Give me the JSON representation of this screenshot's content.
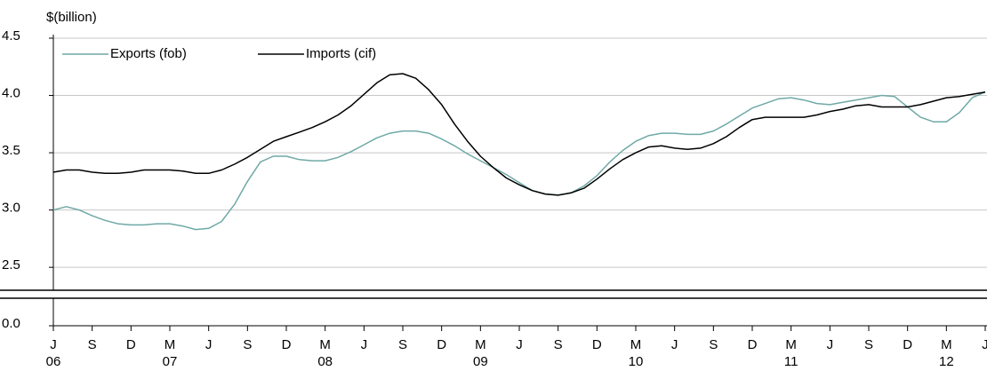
{
  "chart_data": {
    "type": "line",
    "y_axis_label": "$(billion)",
    "categories": [
      "J",
      null,
      null,
      "S",
      null,
      null,
      "D",
      null,
      null,
      "M",
      null,
      null,
      "J",
      null,
      null,
      "S",
      null,
      null,
      "D",
      null,
      null,
      "M",
      null,
      null,
      "J",
      null,
      null,
      "S",
      null,
      null,
      "D",
      null,
      null,
      "M",
      null,
      null,
      "J",
      null,
      null,
      "S",
      null,
      null,
      "D",
      null,
      null,
      "M",
      null,
      null,
      "J",
      null,
      null,
      "S",
      null,
      null,
      "D",
      null,
      null,
      "M",
      null,
      null,
      "J",
      null,
      null,
      "S",
      null,
      null,
      "D",
      null,
      null,
      "M",
      null,
      null,
      "J"
    ],
    "category_years": [
      "06",
      null,
      null,
      null,
      null,
      null,
      null,
      null,
      null,
      "07",
      null,
      null,
      null,
      null,
      null,
      null,
      null,
      null,
      null,
      null,
      null,
      "08",
      null,
      null,
      null,
      null,
      null,
      null,
      null,
      null,
      null,
      null,
      null,
      "09",
      null,
      null,
      null,
      null,
      null,
      null,
      null,
      null,
      null,
      null,
      null,
      "10",
      null,
      null,
      null,
      null,
      null,
      null,
      null,
      null,
      null,
      null,
      null,
      "11",
      null,
      null,
      null,
      null,
      null,
      null,
      null,
      null,
      null,
      null,
      null,
      "12",
      null,
      null,
      null
    ],
    "series": [
      {
        "name": "Exports (fob)",
        "color": "#6fa9a6",
        "values": [
          3.0,
          3.03,
          3.0,
          2.95,
          2.91,
          2.88,
          2.87,
          2.87,
          2.88,
          2.88,
          2.86,
          2.83,
          2.84,
          2.9,
          3.05,
          3.25,
          3.42,
          3.47,
          3.47,
          3.44,
          3.43,
          3.43,
          3.46,
          3.51,
          3.57,
          3.63,
          3.67,
          3.69,
          3.69,
          3.67,
          3.62,
          3.56,
          3.49,
          3.43,
          3.37,
          3.31,
          3.24,
          3.17,
          3.14,
          3.13,
          3.15,
          3.21,
          3.3,
          3.42,
          3.52,
          3.6,
          3.65,
          3.67,
          3.67,
          3.66,
          3.66,
          3.69,
          3.75,
          3.82,
          3.89,
          3.93,
          3.97,
          3.98,
          3.96,
          3.93,
          3.92,
          3.94,
          3.96,
          3.98,
          4.0,
          3.99,
          3.9,
          3.81,
          3.77,
          3.77,
          3.85,
          3.98,
          4.03
        ]
      },
      {
        "name": "Imports (cif)",
        "color": "#000000",
        "values": [
          3.33,
          3.35,
          3.35,
          3.33,
          3.32,
          3.32,
          3.33,
          3.35,
          3.35,
          3.35,
          3.34,
          3.32,
          3.32,
          3.35,
          3.4,
          3.46,
          3.53,
          3.6,
          3.64,
          3.68,
          3.72,
          3.77,
          3.83,
          3.91,
          4.01,
          4.11,
          4.18,
          4.19,
          4.15,
          4.05,
          3.92,
          3.75,
          3.6,
          3.47,
          3.37,
          3.28,
          3.22,
          3.17,
          3.14,
          3.13,
          3.15,
          3.19,
          3.27,
          3.36,
          3.44,
          3.5,
          3.55,
          3.56,
          3.54,
          3.53,
          3.54,
          3.58,
          3.64,
          3.72,
          3.79,
          3.81,
          3.81,
          3.81,
          3.81,
          3.83,
          3.86,
          3.88,
          3.91,
          3.92,
          3.9,
          3.9,
          3.9,
          3.92,
          3.95,
          3.98,
          3.99,
          4.01,
          4.03
        ]
      }
    ],
    "ylim": [
      2.3,
      4.5
    ],
    "yticks": [
      {
        "value": 0,
        "label": "0.0"
      },
      2.5,
      {
        "value": 3,
        "label": "3.0"
      },
      3.5,
      {
        "value": 4,
        "label": "4.0"
      },
      4.5
    ],
    "axis_break": true,
    "grid": true,
    "legend": "top-left"
  }
}
